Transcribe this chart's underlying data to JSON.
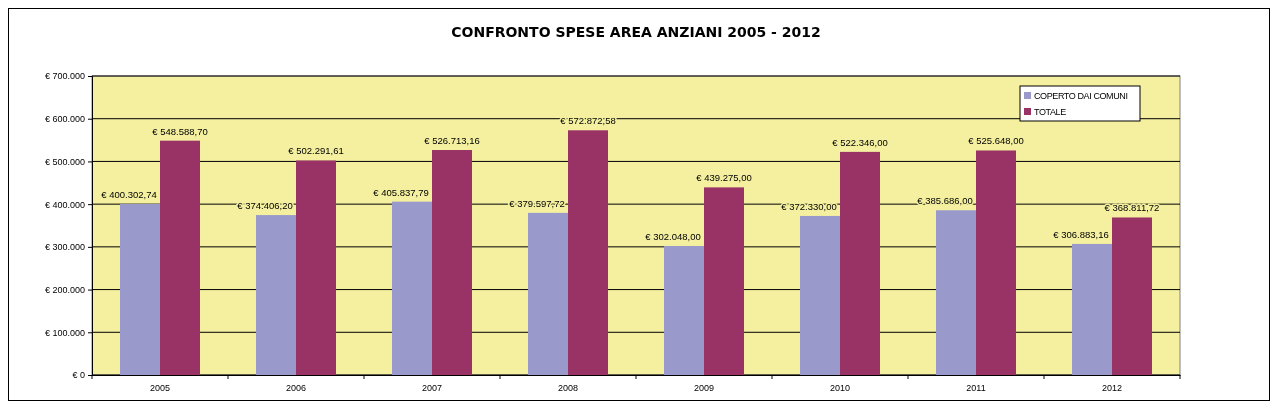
{
  "chart_data": {
    "type": "bar",
    "title": "CONFRONTO SPESE AREA ANZIANI 2005 - 2012",
    "categories": [
      "2005",
      "2006",
      "2007",
      "2008",
      "2009",
      "2010",
      "2011",
      "2012"
    ],
    "series": [
      {
        "name": "COPERTO DAI COMUNI",
        "color": "#9999cc",
        "values": [
          400302.74,
          374406.2,
          405837.79,
          379597.72,
          302048.0,
          372330.0,
          385686.0,
          306883.16
        ],
        "value_labels": [
          "€ 400.302,74",
          "€ 374.406,20",
          "€ 405.837,79",
          "€ 379.597,72",
          "€ 302.048,00",
          "€ 372.330,00",
          "€ 385.686,00",
          "€ 306.883,16"
        ]
      },
      {
        "name": "TOTALE",
        "color": "#993366",
        "values": [
          548588.7,
          502291.61,
          526713.16,
          572872.58,
          439275.0,
          522346.0,
          525648.0,
          368811.72
        ],
        "value_labels": [
          "€ 548.588,70",
          "€ 502.291,61",
          "€ 526.713,16",
          "€ 572.872,58",
          "€ 439.275,00",
          "€ 522.346,00",
          "€ 525.648,00",
          "€ 368.811,72"
        ]
      }
    ],
    "ylim": [
      0,
      700000
    ],
    "yticks": [
      {
        "value": 0,
        "label": "€ 0"
      },
      {
        "value": 100000,
        "label": "€ 100.000"
      },
      {
        "value": 200000,
        "label": "€ 200.000"
      },
      {
        "value": 300000,
        "label": "€ 300.000"
      },
      {
        "value": 400000,
        "label": "€ 400.000"
      },
      {
        "value": 500000,
        "label": "€ 500.000"
      },
      {
        "value": 600000,
        "label": "€ 600.000"
      },
      {
        "value": 700000,
        "label": "€ 700.000"
      }
    ],
    "grid": "y",
    "legend": "top right"
  }
}
